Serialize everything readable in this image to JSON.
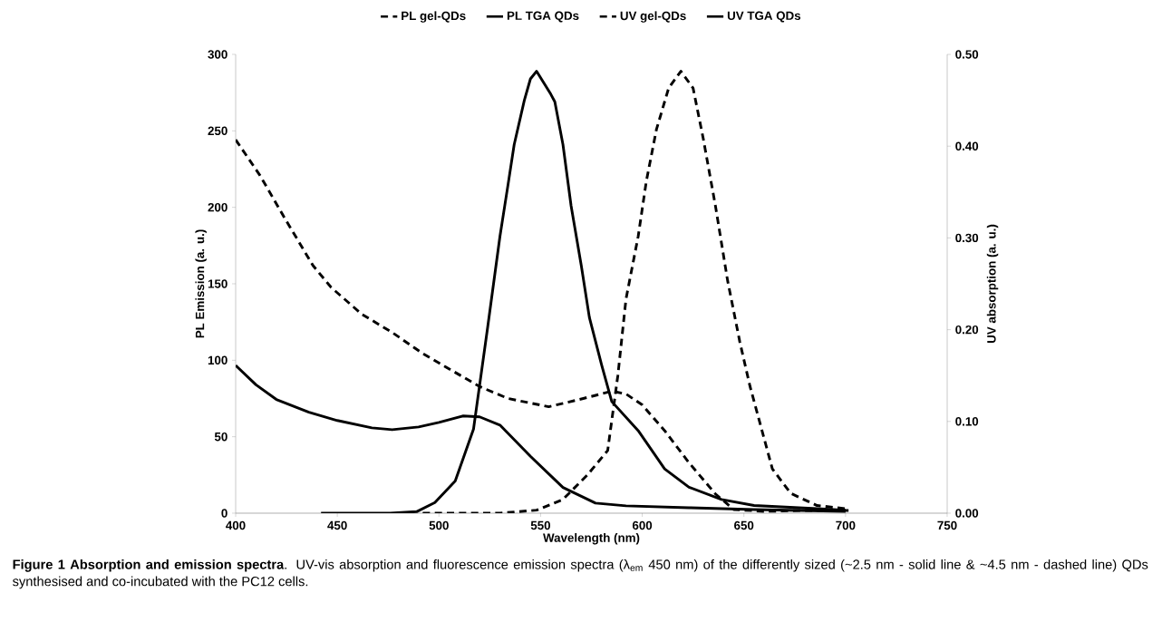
{
  "chart_data": {
    "type": "line",
    "xlabel": "Wavelength (nm)",
    "ylabel": "PL Emission (a. u.)",
    "y2label": "UV absorption (a. u.)",
    "xlim": [
      400,
      750
    ],
    "xticks": [
      400,
      450,
      500,
      550,
      600,
      650,
      700,
      750
    ],
    "ylim": [
      0,
      300
    ],
    "yticks": [
      0,
      50,
      100,
      150,
      200,
      250,
      300
    ],
    "y2lim": [
      0,
      0.5
    ],
    "y2ticks": [
      {
        "value": 0,
        "label": "0.00"
      },
      {
        "value": 0.1,
        "label": "0.10"
      },
      {
        "value": 0.2,
        "label": "0.20"
      },
      {
        "value": 0.3,
        "label": "0.30"
      },
      {
        "value": 0.4,
        "label": "0.40"
      },
      {
        "value": 0.5,
        "label": "0.50"
      }
    ],
    "legend": "top",
    "grid": false,
    "annotations": [
      "**Figure 1 Absorption and emission spectra**. UV-vis absorption and fluorescence emission spectra (λ$_{em}$ 450 nm) of the differently sized (~2.5 nm - solid line & ~4.5 nm - dashed line) QDs synthesised and co-incubated with the PC12 cells."
    ],
    "series": [
      {
        "name": "PL gel-QDs",
        "color": "#000000",
        "line_style": "dashed",
        "x": [
          492,
          530,
          548,
          561,
          573,
          583,
          588,
          592,
          598,
          602,
          607,
          613,
          619,
          625,
          630,
          636,
          642,
          648,
          653,
          664,
          673,
          686,
          700
        ],
        "values": [
          0,
          0,
          2,
          9,
          25,
          41,
          90,
          140,
          181,
          217,
          251,
          278,
          289,
          278,
          245,
          201,
          152,
          112,
          83,
          29,
          13,
          5,
          3
        ]
      },
      {
        "name": "PL TGA QDs",
        "color": "#000000",
        "line_style": "solid",
        "x": [
          442,
          476,
          489,
          498,
          508,
          517,
          524,
          530,
          534,
          537,
          542,
          545,
          548,
          555,
          557,
          561,
          565,
          570,
          574,
          580,
          585,
          598,
          611,
          623,
          639,
          655,
          686,
          700
        ],
        "values": [
          0,
          0,
          1,
          7,
          21,
          55,
          122,
          181,
          215,
          241,
          270,
          284,
          289,
          274,
          269,
          241,
          201,
          162,
          128,
          97,
          73,
          54,
          29,
          17,
          9,
          5,
          3,
          2
        ]
      },
      {
        "name": "UV gel-QDs",
        "color": "#000000",
        "line_style": "dashed",
        "axis": "y2",
        "x": [
          400,
          412,
          424,
          438,
          447,
          462,
          477,
          492,
          506,
          520,
          534,
          554,
          571,
          585,
          592,
          600,
          611,
          623,
          636,
          645,
          660,
          680,
          702
        ],
        "values": [
          0.407,
          0.368,
          0.322,
          0.27,
          0.246,
          0.217,
          0.197,
          0.174,
          0.156,
          0.138,
          0.125,
          0.116,
          0.125,
          0.133,
          0.13,
          0.118,
          0.09,
          0.055,
          0.021,
          0.004,
          0.002,
          0.003,
          0.003
        ]
      },
      {
        "name": "UV TGA QDs",
        "color": "#000000",
        "line_style": "solid",
        "axis": "y2",
        "x": [
          400,
          410,
          420,
          436,
          450,
          467,
          477,
          490,
          500,
          512,
          520,
          530,
          545,
          561,
          577,
          592,
          623,
          655,
          700
        ],
        "values": [
          0.161,
          0.14,
          0.124,
          0.11,
          0.101,
          0.093,
          0.091,
          0.094,
          0.099,
          0.106,
          0.105,
          0.096,
          0.062,
          0.028,
          0.011,
          0.008,
          0.006,
          0.004,
          0.002
        ]
      }
    ]
  }
}
